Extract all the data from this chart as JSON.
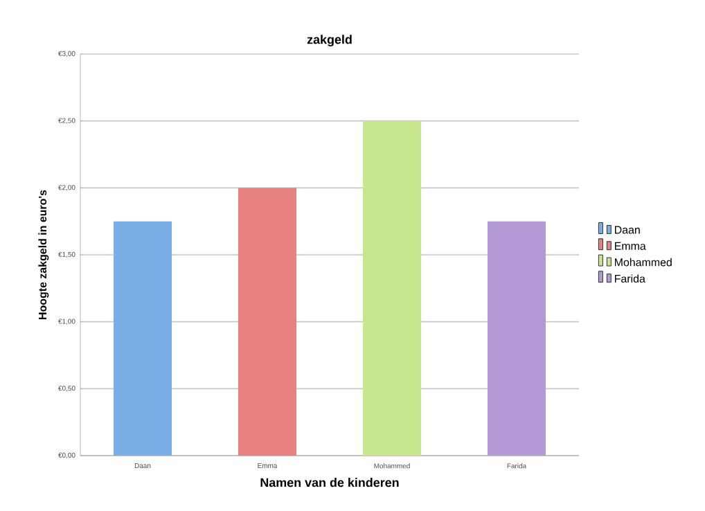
{
  "chart_data": {
    "type": "bar",
    "title": "zakgeld",
    "xlabel": "Namen van de kinderen",
    "ylabel": "Hoogte zakgeld in euro's",
    "categories": [
      "Daan",
      "Emma",
      "Mohammed",
      "Farida"
    ],
    "series": [
      {
        "name": "Daan",
        "color": "#7aaee6",
        "values": [
          1.75,
          null,
          null,
          null
        ]
      },
      {
        "name": "Emma",
        "color": "#e8827e",
        "values": [
          null,
          2.0,
          null,
          null
        ]
      },
      {
        "name": "Mohammed",
        "color": "#c8e68e",
        "values": [
          null,
          null,
          2.5,
          null
        ]
      },
      {
        "name": "Farida",
        "color": "#b39ad6",
        "values": [
          null,
          null,
          null,
          1.75
        ]
      }
    ],
    "ylim": [
      0,
      3
    ],
    "yticks": [
      {
        "value": 0,
        "label": "€0,00"
      },
      {
        "value": 0.5,
        "label": "€0,50"
      },
      {
        "value": 1,
        "label": "€1,00"
      },
      {
        "value": 1.5,
        "label": "€1,50"
      },
      {
        "value": 2,
        "label": "€2,00"
      },
      {
        "value": 2.5,
        "label": "€2,50"
      },
      {
        "value": 3,
        "label": "€3,00"
      }
    ],
    "grid": "y",
    "legend": "right"
  }
}
